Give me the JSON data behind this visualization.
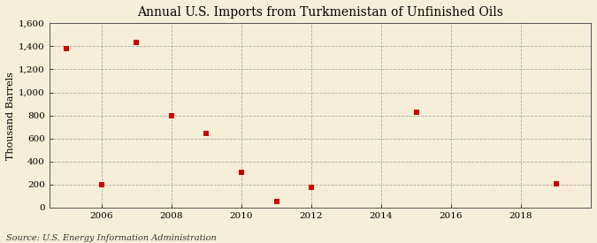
{
  "title": "Annual U.S. Imports from Turkmenistan of Unfinished Oils",
  "ylabel": "Thousand Barrels",
  "source": "Source: U.S. Energy Information Administration",
  "years": [
    2005,
    2006,
    2007,
    2008,
    2009,
    2010,
    2011,
    2012,
    2015,
    2019
  ],
  "values": [
    1380,
    200,
    1430,
    800,
    640,
    310,
    50,
    175,
    825,
    205
  ],
  "marker_color": "#cc0000",
  "marker_size": 18,
  "background_color": "#f5eed8",
  "plot_bg_color": "#f5eed8",
  "grid_color": "#999999",
  "xlim": [
    2004.5,
    2020
  ],
  "ylim": [
    0,
    1600
  ],
  "yticks": [
    0,
    200,
    400,
    600,
    800,
    1000,
    1200,
    1400,
    1600
  ],
  "xticks": [
    2006,
    2008,
    2010,
    2012,
    2014,
    2016,
    2018
  ],
  "title_fontsize": 10,
  "label_fontsize": 8,
  "tick_fontsize": 7.5,
  "source_fontsize": 7
}
